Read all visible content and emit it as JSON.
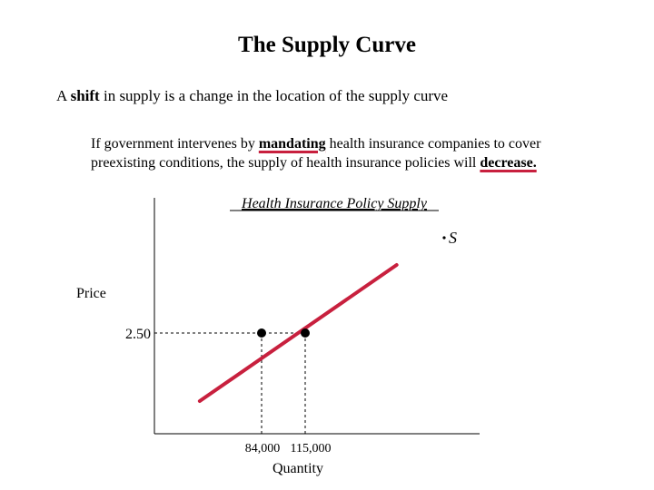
{
  "slide": {
    "title": "The Supply Curve",
    "line1_prefix": "A ",
    "line1_bold": "shift",
    "line1_suffix": " in supply is a change in the location of the supply curve",
    "para_part1": "If government intervenes by ",
    "para_highlight1": "mandating",
    "para_part2": " health insurance companies to cover",
    "para_part3": "preexisting conditions, the supply of health insurance policies will ",
    "para_highlight2": "decrease.",
    "accent_color": "#c8203e"
  },
  "chart_data": {
    "type": "line",
    "title": "Health Insurance Policy Supply",
    "xlabel": "Quantity",
    "ylabel": "Price",
    "series": [
      {
        "name": "S",
        "points": [
          [
            40000,
            2.0
          ],
          [
            180000,
            3.0
          ]
        ]
      }
    ],
    "highlight_points": [
      {
        "x": 84000,
        "y": 2.5
      },
      {
        "x": 115000,
        "y": 2.5
      }
    ],
    "x_ticks": [
      "84,000",
      "115,000"
    ],
    "y_ticks": [
      "2.50"
    ],
    "curve_label": "S",
    "line_color": "#c8203e",
    "grid": false
  }
}
